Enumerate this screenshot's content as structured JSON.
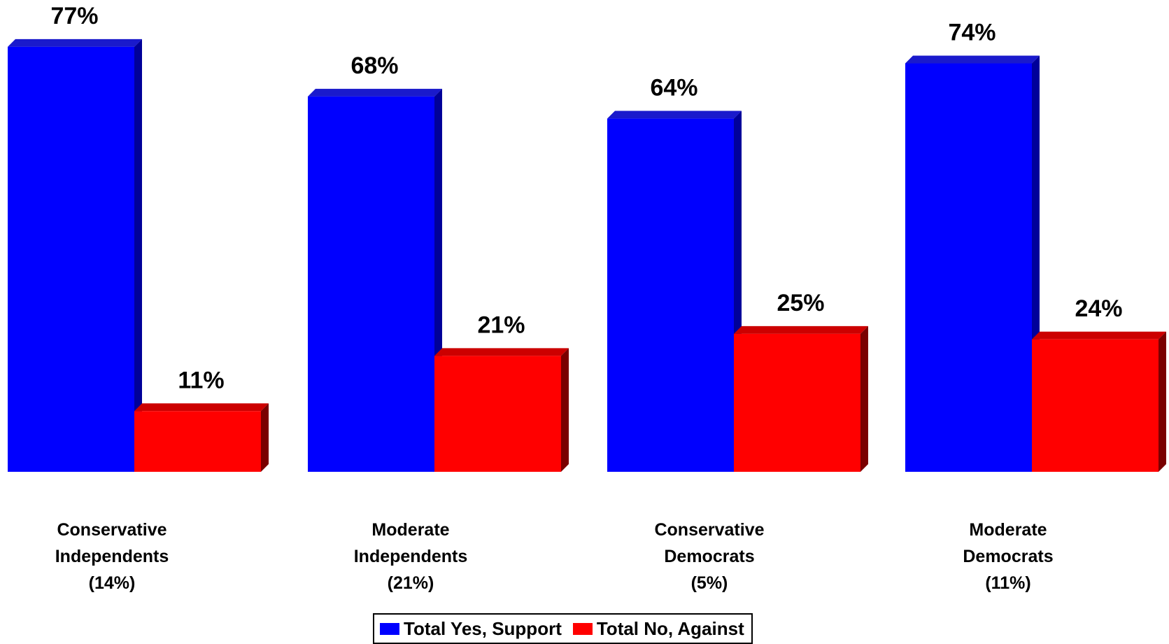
{
  "colors": {
    "yes": "#0000ff",
    "yes_top": "#1a1acc",
    "yes_side": "#000099",
    "no": "#ff0000",
    "no_top": "#cc0000",
    "no_side": "#7a0000"
  },
  "chart_data": {
    "type": "bar",
    "categories": [
      "Conservative\nIndependents\n(14%)",
      "Moderate\nIndependents\n(21%)",
      "Conservative\nDemocrats\n(5%)",
      "Moderate\nDemocrats\n(11%)"
    ],
    "series": [
      {
        "name": "Total Yes, Support",
        "values": [
          77,
          68,
          64,
          74
        ],
        "labels": [
          "77%",
          "68%",
          "64%",
          "74%"
        ]
      },
      {
        "name": "Total No, Against",
        "values": [
          11,
          21,
          25,
          24
        ],
        "labels": [
          "11%",
          "21%",
          "25%",
          "24%"
        ]
      }
    ],
    "legend_position": "bottom-center"
  }
}
